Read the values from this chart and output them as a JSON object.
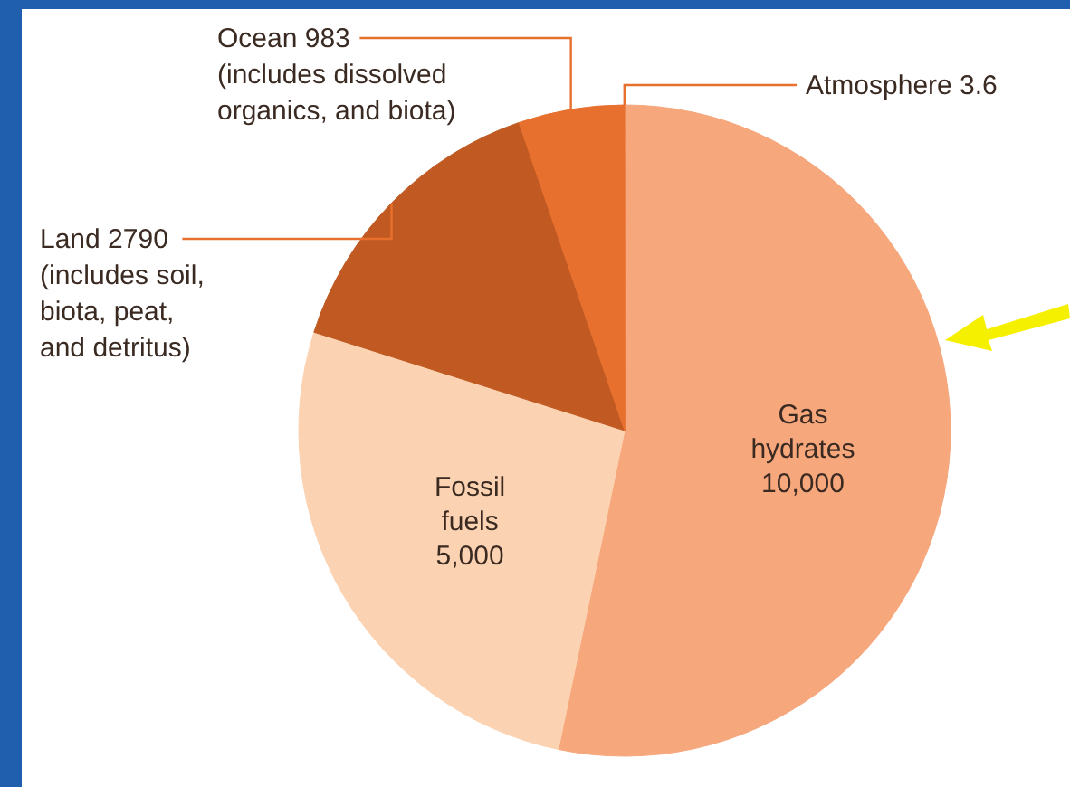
{
  "chart_data": {
    "type": "pie",
    "categories": [
      "Gas hydrates",
      "Fossil fuels",
      "Land",
      "Ocean",
      "Atmosphere"
    ],
    "values": [
      10000,
      5000,
      2790,
      983,
      3.6
    ],
    "value_labels": [
      "10,000",
      "5,000",
      "2790",
      "983",
      "3.6"
    ],
    "colors": [
      "#f6a77c",
      "#fcd3b2",
      "#c05a22",
      "#e8702f",
      "#e8702f"
    ],
    "annotations": [
      {
        "text": "(includes soil, biota, peat, and detritus)",
        "x": "Land"
      },
      {
        "text": "(includes dissolved organics, and biota)",
        "x": "Ocean"
      }
    ]
  }
}
